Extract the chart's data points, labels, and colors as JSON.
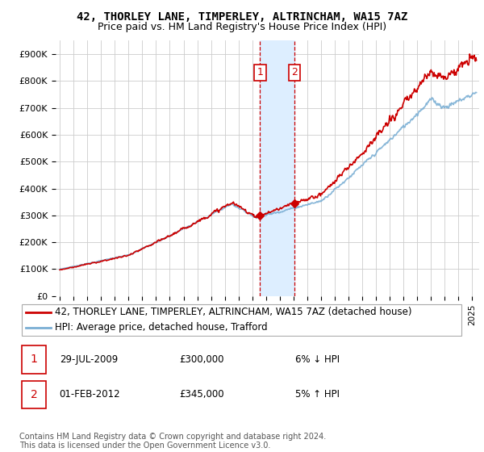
{
  "title": "42, THORLEY LANE, TIMPERLEY, ALTRINCHAM, WA15 7AZ",
  "subtitle": "Price paid vs. HM Land Registry's House Price Index (HPI)",
  "ylabel_ticks": [
    "£0",
    "£100K",
    "£200K",
    "£300K",
    "£400K",
    "£500K",
    "£600K",
    "£700K",
    "£800K",
    "£900K"
  ],
  "ytick_values": [
    0,
    100000,
    200000,
    300000,
    400000,
    500000,
    600000,
    700000,
    800000,
    900000
  ],
  "ylim": [
    0,
    950000
  ],
  "xlim_start": 1994.7,
  "xlim_end": 2025.5,
  "sale1_x": 2009.57,
  "sale1_y": 300000,
  "sale1_label": "1",
  "sale2_x": 2012.08,
  "sale2_y": 345000,
  "sale2_label": "2",
  "hpi_color": "#7bafd4",
  "price_color": "#cc0000",
  "highlight_color": "#ddeeff",
  "grid_color": "#cccccc",
  "legend_label_price": "42, THORLEY LANE, TIMPERLEY, ALTRINCHAM, WA15 7AZ (detached house)",
  "legend_label_hpi": "HPI: Average price, detached house, Trafford",
  "annotation1_date": "29-JUL-2009",
  "annotation1_price": "£300,000",
  "annotation1_hpi": "6% ↓ HPI",
  "annotation2_date": "01-FEB-2012",
  "annotation2_price": "£345,000",
  "annotation2_hpi": "5% ↑ HPI",
  "footer": "Contains HM Land Registry data © Crown copyright and database right 2024.\nThis data is licensed under the Open Government Licence v3.0.",
  "title_fontsize": 10,
  "subtitle_fontsize": 9,
  "tick_fontsize": 8,
  "legend_fontsize": 8.5
}
